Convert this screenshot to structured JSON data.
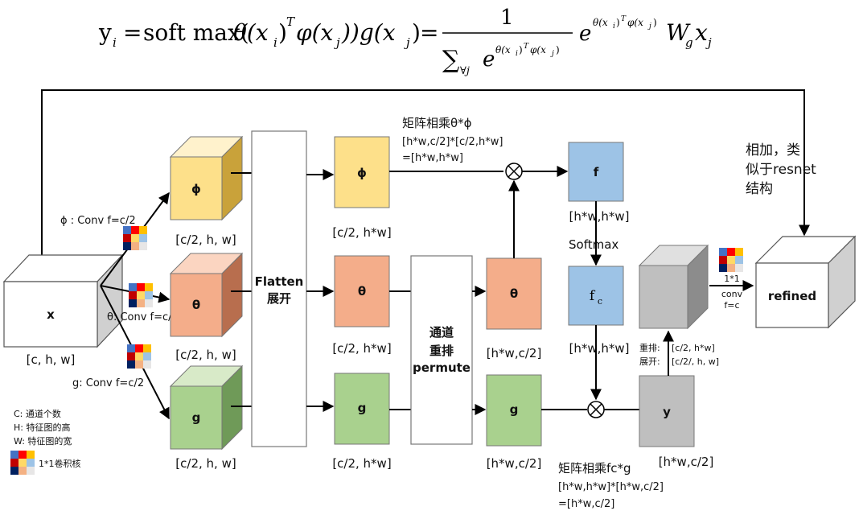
{
  "formula": {
    "lhs": "y",
    "lhs_sub": "i",
    "eq": "=",
    "softmax_text": "soft max(",
    "theta_arg": "θ(x",
    "sub_i": "i",
    "close_paren": ")",
    "sup_T": "T",
    "phi_arg": "φ(x",
    "sub_j": "j",
    "g_part": "))g(x",
    "frac_num": "1",
    "frac_den_sum": "∑",
    "frac_den_sub": "∀j",
    "e": "e",
    "exp_text": "θ(x",
    "exp_rest": "φ(x",
    "tail": "W",
    "tail_sub": "g",
    "tail_x": "x"
  },
  "nodes": {
    "x": {
      "label": "x",
      "shape": "[c, h, w]"
    },
    "phi_cube": {
      "label": "ϕ",
      "shape": "[c/2, h, w]",
      "conv": "ϕ : Conv f=c/2",
      "color": "#fde08a"
    },
    "theta_cube": {
      "label": "θ",
      "shape": "[c/2, h, w]",
      "conv": "θ: Conv f=c/2",
      "color": "#f4ad8a"
    },
    "g_cube": {
      "label": "g",
      "shape": "[c/2, h, w]",
      "conv": "g: Conv f=c/2",
      "color": "#a9d18e"
    },
    "flatten": {
      "line1": "Flatten",
      "line2": "展开"
    },
    "phi_flat": {
      "label": "ϕ",
      "shape": "[c/2, h*w]"
    },
    "theta_flat": {
      "label": "θ",
      "shape": "[c/2, h*w]"
    },
    "g_flat": {
      "label": "g",
      "shape": "[c/2, h*w]"
    },
    "permute": {
      "line1": "通道",
      "line2": "重排",
      "line3": "permute"
    },
    "theta_perm": {
      "label": "θ",
      "shape": "[h*w,c/2]"
    },
    "g_perm": {
      "label": "g",
      "shape": "[h*w,c/2]"
    },
    "f": {
      "label": "f",
      "shape": "[h*w,h*w]"
    },
    "softmax": "Softmax",
    "fc": {
      "label": "f",
      "label_sub": "c",
      "shape": "[h*w,h*w]"
    },
    "y": {
      "label": "y",
      "shape": "[h*w,c/2]"
    },
    "reshape_cube": {
      "line1": "重排:",
      "line1_val": "[c/2, h*w]",
      "line2": "展开:",
      "line2_val": "[c/2/, h, w]"
    },
    "conv_out": {
      "line1": "1*1",
      "line2": "conv",
      "line3": "f=c"
    },
    "refined": {
      "label": "refined"
    }
  },
  "annotations": {
    "matmul1_title": "矩阵相乘θ*ϕ",
    "matmul1_l1": "[h*w,c/2]*[c/2,h*w]",
    "matmul1_l2": "=[h*w,h*w]",
    "matmul2_title": "矩阵相乘fc*g",
    "matmul2_l1": "[h*w,h*w]*[h*w,c/2]",
    "matmul2_l2": "=[h*w,c/2]",
    "add_l1": "相加，类",
    "add_l2": "似于resnet",
    "add_l3": "结构"
  },
  "legend": {
    "c": "C:  通道个数",
    "h": "H:  特征图的高",
    "w": "W: 特征图的宽",
    "kernel": "1*1卷积核"
  },
  "colors": {
    "phi": "#fde08a",
    "theta": "#f4ad8a",
    "g": "#a9d18e",
    "blue": "#9dc3e6",
    "gray": "#bfbfbf"
  }
}
